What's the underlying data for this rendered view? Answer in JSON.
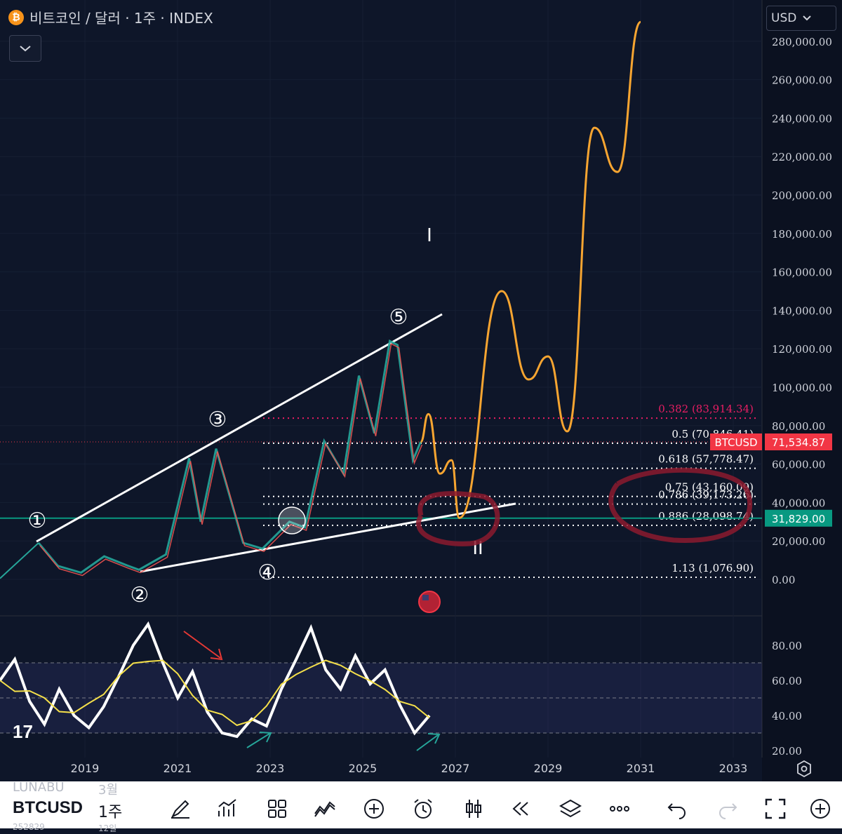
{
  "header": {
    "title": "비트코인 / 달러 · 1주 · INDEX",
    "coin_symbol": "₿",
    "currency": "USD"
  },
  "chart_data": {
    "type": "line",
    "price_axis": {
      "ticks": [
        "280,000.00",
        "260,000.00",
        "240,000.00",
        "220,000.00",
        "200,000.00",
        "180,000.00",
        "160,000.00",
        "140,000.00",
        "120,000.00",
        "100,000.00",
        "80,000.00",
        "60,000.00",
        "40,000.00",
        "20,000.00",
        "0.00"
      ],
      "ylim": [
        0,
        280000
      ]
    },
    "time_axis": {
      "ticks": [
        "2019",
        "2021",
        "2023",
        "2025",
        "2027",
        "2029",
        "2031",
        "2033"
      ]
    },
    "price_labels": [
      {
        "name": "BTCUSD",
        "value": "71,534.87",
        "color": "#f23645"
      },
      {
        "name": "",
        "value": "31,829.00",
        "color": "#089981"
      }
    ],
    "fib_levels": [
      {
        "ratio": "0.382",
        "label": "0.382 (83,914.34)",
        "value": 83914.34,
        "color": "#e91e63"
      },
      {
        "ratio": "0.5",
        "label": "0.5 (70,846.41)",
        "value": 70846.41,
        "color": "#ffffff"
      },
      {
        "ratio": "0.618",
        "label": "0.618 (57,778.47)",
        "value": 57778.47,
        "color": "#ffffff"
      },
      {
        "ratio": "0.75",
        "label": "0.75 (43,160.09)",
        "value": 43160.09,
        "color": "#ffffff"
      },
      {
        "ratio": "0.786",
        "label": "0.786 (39,173.26)",
        "value": 39173.26,
        "color": "#ffffff"
      },
      {
        "ratio": "0.886",
        "label": "0.886 (28,098.74)",
        "value": 28098.74,
        "color": "#ffffff"
      },
      {
        "ratio": "1.13",
        "label": "1.13 (1,076.90)",
        "value": 1076.9,
        "color": "#ffffff"
      }
    ],
    "wave_labels": [
      "①",
      "②",
      "③",
      "④",
      "⑤"
    ],
    "wave_counts": [
      "I",
      "II"
    ],
    "price_series": {
      "name": "BTCUSD",
      "points": [
        [
          "2018-01",
          19000
        ],
        [
          "2018-06",
          7000
        ],
        [
          "2018-12",
          3500
        ],
        [
          "2019-06",
          12000
        ],
        [
          "2019-12",
          7200
        ],
        [
          "2020-03",
          5000
        ],
        [
          "2020-10",
          13000
        ],
        [
          "2021-04",
          63000
        ],
        [
          "2021-07",
          30000
        ],
        [
          "2021-11",
          68000
        ],
        [
          "2022-06",
          19000
        ],
        [
          "2022-11",
          16000
        ],
        [
          "2023-06",
          30000
        ],
        [
          "2023-10",
          27000
        ],
        [
          "2024-03",
          72000
        ],
        [
          "2024-08",
          55000
        ],
        [
          "2024-12",
          106000
        ],
        [
          "2025-04",
          76000
        ],
        [
          "2025-08",
          124000
        ],
        [
          "2025-10",
          122000
        ],
        [
          "2026-02",
          62000
        ],
        [
          "2026-04",
          71534.87
        ]
      ]
    },
    "projection_series": {
      "name": "projection",
      "points": [
        [
          "2026-04",
          71500
        ],
        [
          "2026-06",
          86000
        ],
        [
          "2026-09",
          55000
        ],
        [
          "2026-12",
          62000
        ],
        [
          "2027-02",
          32000
        ],
        [
          "2028-01",
          150000
        ],
        [
          "2028-08",
          104000
        ],
        [
          "2029-01",
          116000
        ],
        [
          "2029-06",
          77000
        ],
        [
          "2030-01",
          235000
        ],
        [
          "2030-07",
          212000
        ],
        [
          "2031-01",
          290000
        ]
      ]
    },
    "rsi": {
      "ticks": [
        "80.00",
        "60.00",
        "40.00",
        "20.00"
      ],
      "ylim": [
        20,
        90
      ],
      "band": [
        30,
        70
      ],
      "series_values": [
        60,
        72,
        48,
        35,
        55,
        40,
        33,
        45,
        62,
        80,
        92,
        70,
        50,
        65,
        42,
        30,
        28,
        38,
        34,
        55,
        72,
        90,
        66,
        55,
        74,
        58,
        66,
        46,
        30,
        40
      ]
    }
  },
  "toolbar": {
    "symbol": "BTCUSD",
    "interval": "1주",
    "ghost_symbol": "LUNABU",
    "ghost_interval": "3월",
    "ghost_line2": "252829",
    "ghost_line2b": "12일"
  },
  "logo": "17"
}
